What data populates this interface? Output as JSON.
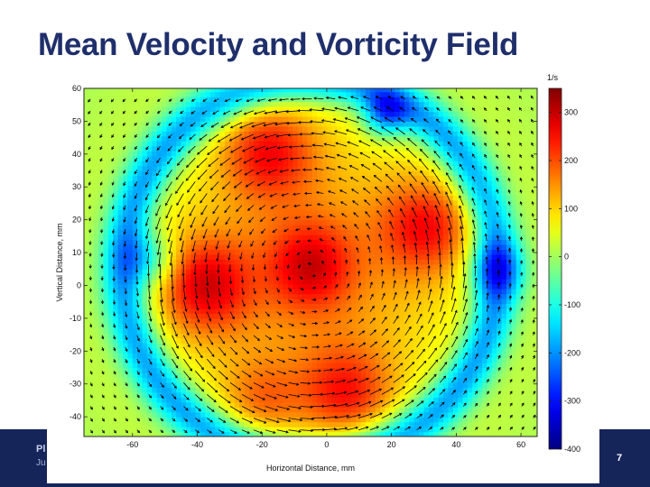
{
  "slide": {
    "title": "Mean Velocity and Vorticity Field",
    "footer_text": "Pl",
    "footer_sub": "Ju",
    "slide_number": "7",
    "theme_color": "#152459",
    "title_color": "#1f2f6b"
  },
  "chart_data": {
    "type": "heatmap",
    "title": "",
    "xlabel": "Horizontal Distance, mm",
    "ylabel": "Vertical Distance, mm",
    "xlim": [
      -75,
      65
    ],
    "ylim": [
      -46,
      60
    ],
    "x_ticks": [
      -60,
      -40,
      -20,
      0,
      20,
      40,
      60
    ],
    "y_ticks": [
      60,
      50,
      40,
      30,
      20,
      10,
      0,
      -10,
      -20,
      -30,
      -40
    ],
    "colorbar": {
      "label": "1/s",
      "range": [
        -400,
        350
      ],
      "ticks": [
        300,
        200,
        100,
        0,
        -100,
        -200,
        -300,
        -400
      ],
      "colormap": "jet"
    },
    "field": {
      "background": 0,
      "features": [
        {
          "kind": "ring",
          "center": [
            -5,
            5
          ],
          "radius": 58,
          "width": 5,
          "value": -230
        },
        {
          "kind": "blob",
          "center": [
            -5,
            5
          ],
          "sigma": 38,
          "value": 150
        },
        {
          "kind": "blob",
          "center": [
            -5,
            6
          ],
          "sigma": 9,
          "value": 150
        },
        {
          "kind": "blob",
          "center": [
            -18,
            41
          ],
          "sigma": 10,
          "value": 170
        },
        {
          "kind": "blob",
          "center": [
            -38,
            0
          ],
          "sigma": 10,
          "value": 190
        },
        {
          "kind": "blob",
          "center": [
            31,
            18
          ],
          "sigma": 10,
          "value": 170
        },
        {
          "kind": "blob",
          "center": [
            6,
            -33
          ],
          "sigma": 10,
          "value": 160
        },
        {
          "kind": "blob",
          "center": [
            -20,
            -35
          ],
          "sigma": 9,
          "value": 100
        },
        {
          "kind": "blob",
          "center": [
            18,
            52
          ],
          "sigma": 5,
          "value": -210
        },
        {
          "kind": "blob",
          "center": [
            -55,
            8
          ],
          "sigma": 6,
          "value": -150
        },
        {
          "kind": "blob",
          "center": [
            52,
            5
          ],
          "sigma": 6,
          "value": -160
        }
      ]
    },
    "vectors": {
      "rotation": "counter-clockwise",
      "center": [
        -5,
        5
      ],
      "core_radius": 48
    }
  }
}
